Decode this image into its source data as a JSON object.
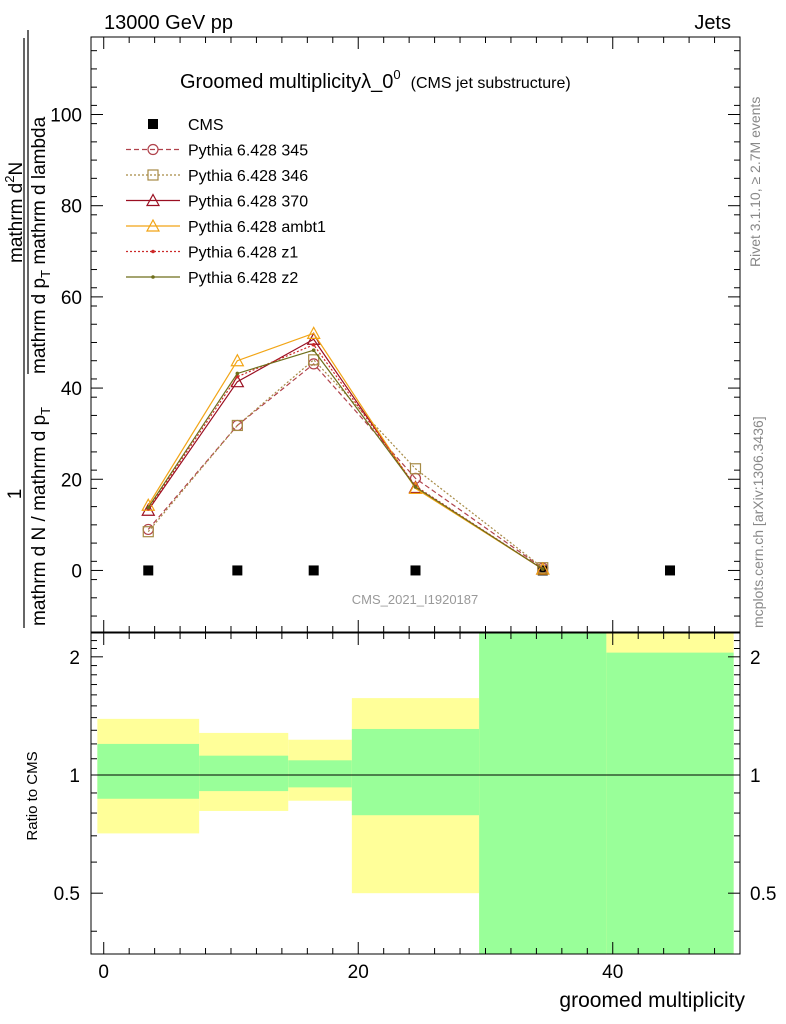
{
  "header": {
    "left": "13000 GeV pp",
    "right": "Jets"
  },
  "title": {
    "main": "Groomed multiplicityλ_0",
    "sup": "0",
    "sub": "(CMS jet substructure)"
  },
  "side_text": {
    "rivet": "Rivet 3.1.10, ≥ 2.7M events",
    "mcplots": "mcplots.cern.ch [arXiv:1306.3436]"
  },
  "watermark": "CMS_2021_I1920187",
  "ylabel_top": {
    "one": "1",
    "line1": "mathrm d N / mathrm d p",
    "line1_sub": "T",
    "line2": "mathrm d",
    "line2_sup": "2",
    "line2b": "N",
    "line3": "mathrm d p",
    "line3_sub": "T",
    "line3b": " mathrm d lambda"
  },
  "ylabel_bottom": "Ratio to CMS",
  "xlabel": "groomed multiplicity",
  "chart_data": [
    {
      "type": "line",
      "panel": "main",
      "xlim": [
        -1,
        50
      ],
      "ylim": [
        -13.5,
        117
      ],
      "yticks": [
        0,
        20,
        40,
        60,
        80,
        100
      ],
      "legend_position": "top-left",
      "series": [
        {
          "name": "CMS",
          "style": "marker",
          "color": "#000000",
          "marker": "square",
          "x": [
            3.5,
            10.5,
            16.5,
            24.5,
            34.5,
            44.5
          ],
          "y": [
            0,
            0,
            0,
            0,
            0,
            0
          ]
        },
        {
          "name": "Pythia 6.428 345",
          "style": "dashed",
          "color": "#b0424b",
          "marker": "circle",
          "x": [
            3.5,
            10.5,
            16.5,
            24.5,
            34.5
          ],
          "y": [
            9,
            31.8,
            45.3,
            20.2,
            0.5
          ]
        },
        {
          "name": "Pythia 6.428 346",
          "style": "dotted",
          "color": "#a68a45",
          "marker": "square-open",
          "x": [
            3.5,
            10.5,
            16.5,
            24.5,
            34.5
          ],
          "y": [
            8.5,
            31.8,
            46.2,
            22.3,
            0.6
          ]
        },
        {
          "name": "Pythia 6.428 370",
          "style": "solid",
          "color": "#9a0f21",
          "marker": "triangle-open",
          "x": [
            3.5,
            10.5,
            16.5,
            24.5,
            34.5
          ],
          "y": [
            13.2,
            41.4,
            50.7,
            18.2,
            0.3
          ]
        },
        {
          "name": "Pythia 6.428 ambt1",
          "style": "solid",
          "color": "#f2a516",
          "marker": "triangle-open",
          "x": [
            3.5,
            10.5,
            16.5,
            24.5,
            34.5
          ],
          "y": [
            14.3,
            46,
            52,
            18,
            0.3
          ]
        },
        {
          "name": "Pythia 6.428 z1",
          "style": "dotted",
          "color": "#cc2a2a",
          "marker": "dot",
          "x": [
            3.5,
            10.5,
            16.5,
            24.5,
            34.5
          ],
          "y": [
            13.5,
            42.5,
            49.5,
            18.5,
            0.3
          ]
        },
        {
          "name": "Pythia 6.428 z2",
          "style": "solid",
          "color": "#6e6e1a",
          "marker": "dot",
          "x": [
            3.5,
            10.5,
            16.5,
            24.5,
            34.5
          ],
          "y": [
            13.8,
            43.2,
            48.3,
            18.3,
            0.3
          ]
        }
      ]
    },
    {
      "type": "area",
      "panel": "ratio",
      "xlim": [
        -1,
        50
      ],
      "ylim": [
        0.35,
        2.3
      ],
      "yscale": "log",
      "yticks": [
        0.5,
        1,
        2
      ],
      "xticks": [
        0,
        20,
        40
      ],
      "reference": 1,
      "bins": [
        {
          "x": [
            -0.5,
            7.5
          ],
          "yellow": [
            0.71,
            1.39
          ],
          "green": [
            0.87,
            1.2
          ]
        },
        {
          "x": [
            7.5,
            14.5
          ],
          "yellow": [
            0.81,
            1.28
          ],
          "green": [
            0.91,
            1.12
          ]
        },
        {
          "x": [
            14.5,
            19.5
          ],
          "yellow": [
            0.86,
            1.23
          ],
          "green": [
            0.93,
            1.09
          ]
        },
        {
          "x": [
            19.5,
            29.5
          ],
          "yellow": [
            0.5,
            1.57
          ],
          "green": [
            0.79,
            1.31
          ]
        },
        {
          "x": [
            29.5,
            39.5
          ],
          "yellow": [
            0.35,
            2.3
          ],
          "green": [
            0.35,
            2.3
          ]
        },
        {
          "x": [
            39.5,
            49.5
          ],
          "yellow": [
            0.35,
            2.3
          ],
          "green": [
            0.35,
            2.05
          ]
        }
      ]
    }
  ]
}
